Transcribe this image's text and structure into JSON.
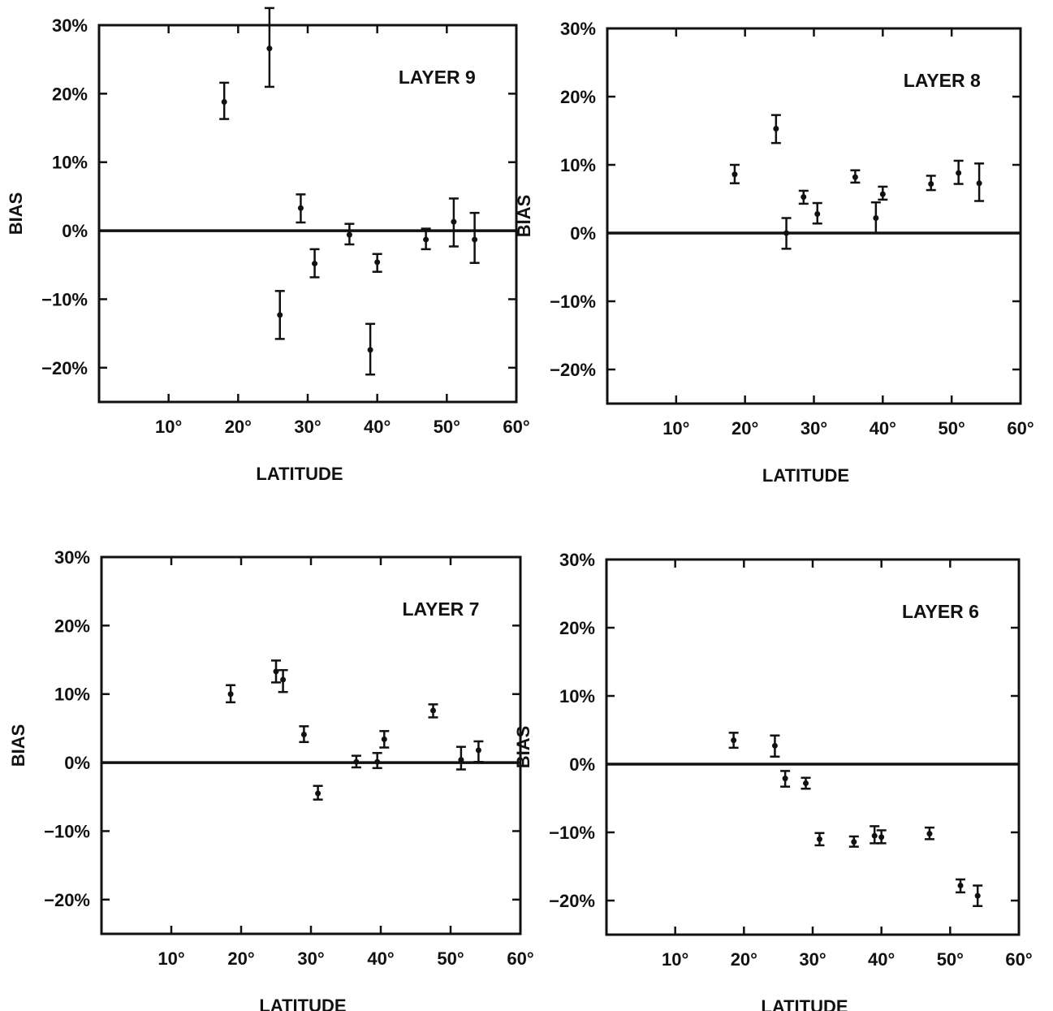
{
  "chart_data": [
    {
      "type": "scatter",
      "title": "LAYER 9",
      "xlabel": "LATITUDE",
      "ylabel": "BIAS",
      "xlim": [
        0,
        60
      ],
      "ylim": [
        -25,
        30
      ],
      "xticks": [
        10,
        20,
        30,
        40,
        50,
        60
      ],
      "xtick_labels": [
        "10°",
        "20°",
        "30°",
        "40°",
        "50°",
        "60°"
      ],
      "yticks": [
        -20,
        -10,
        0,
        10,
        20,
        30
      ],
      "ytick_labels": [
        "−20%",
        "−10%",
        "0%",
        "10%",
        "20%",
        "30%"
      ],
      "points": [
        {
          "x": 18.0,
          "y": 18.8,
          "lo": 16.3,
          "hi": 21.6
        },
        {
          "x": 24.5,
          "y": 26.6,
          "lo": 21.0,
          "hi": 32.5
        },
        {
          "x": 26.0,
          "y": -12.3,
          "lo": -15.8,
          "hi": -8.8
        },
        {
          "x": 29.0,
          "y": 3.3,
          "lo": 1.2,
          "hi": 5.3
        },
        {
          "x": 31.0,
          "y": -4.8,
          "lo": -6.8,
          "hi": -2.7
        },
        {
          "x": 36.0,
          "y": -0.6,
          "lo": -2.0,
          "hi": 1.0
        },
        {
          "x": 40.0,
          "y": -4.6,
          "lo": -6.0,
          "hi": -3.4
        },
        {
          "x": 39.0,
          "y": -17.4,
          "lo": -21.0,
          "hi": -13.6
        },
        {
          "x": 47.0,
          "y": -1.3,
          "lo": -2.7,
          "hi": 0.3
        },
        {
          "x": 51.0,
          "y": 1.3,
          "lo": -2.3,
          "hi": 4.7
        },
        {
          "x": 54.0,
          "y": -1.3,
          "lo": -4.7,
          "hi": 2.6
        }
      ]
    },
    {
      "type": "scatter",
      "title": "LAYER 8",
      "xlabel": "LATITUDE",
      "ylabel": "BIAS",
      "xlim": [
        0,
        60
      ],
      "ylim": [
        -25,
        30
      ],
      "xticks": [
        10,
        20,
        30,
        40,
        50,
        60
      ],
      "xtick_labels": [
        "10°",
        "20°",
        "30°",
        "40°",
        "50°",
        "60°"
      ],
      "yticks": [
        -20,
        -10,
        0,
        10,
        20,
        30
      ],
      "ytick_labels": [
        "−20%",
        "−10%",
        "0%",
        "10%",
        "20%",
        "30%"
      ],
      "points": [
        {
          "x": 18.5,
          "y": 8.6,
          "lo": 7.3,
          "hi": 10.0
        },
        {
          "x": 24.5,
          "y": 15.3,
          "lo": 13.2,
          "hi": 17.3
        },
        {
          "x": 26.0,
          "y": 0.0,
          "lo": -2.3,
          "hi": 2.2
        },
        {
          "x": 28.5,
          "y": 5.3,
          "lo": 4.3,
          "hi": 6.2
        },
        {
          "x": 30.5,
          "y": 2.8,
          "lo": 1.4,
          "hi": 4.4
        },
        {
          "x": 36.0,
          "y": 8.2,
          "lo": 7.4,
          "hi": 9.2
        },
        {
          "x": 39.0,
          "y": 2.2,
          "lo": 0.0,
          "hi": 4.5
        },
        {
          "x": 40.0,
          "y": 5.7,
          "lo": 4.9,
          "hi": 6.8
        },
        {
          "x": 47.0,
          "y": 7.2,
          "lo": 6.3,
          "hi": 8.4
        },
        {
          "x": 51.0,
          "y": 8.8,
          "lo": 7.2,
          "hi": 10.6
        },
        {
          "x": 54.0,
          "y": 7.3,
          "lo": 4.7,
          "hi": 10.2
        }
      ]
    },
    {
      "type": "scatter",
      "title": "LAYER 7",
      "xlabel": "LATITUDE",
      "ylabel": "BIAS",
      "xlim": [
        0,
        60
      ],
      "ylim": [
        -25,
        30
      ],
      "xticks": [
        10,
        20,
        30,
        40,
        50,
        60
      ],
      "xtick_labels": [
        "10°",
        "20°",
        "30°",
        "40°",
        "50°",
        "60°"
      ],
      "yticks": [
        -20,
        -10,
        0,
        10,
        20,
        30
      ],
      "ytick_labels": [
        "−20%",
        "−10%",
        "0%",
        "10%",
        "20%",
        "30%"
      ],
      "points": [
        {
          "x": 18.5,
          "y": 10.0,
          "lo": 8.8,
          "hi": 11.3
        },
        {
          "x": 25.0,
          "y": 13.3,
          "lo": 11.7,
          "hi": 14.9
        },
        {
          "x": 26.0,
          "y": 12.1,
          "lo": 10.3,
          "hi": 13.5
        },
        {
          "x": 29.0,
          "y": 4.1,
          "lo": 3.0,
          "hi": 5.3
        },
        {
          "x": 31.0,
          "y": -4.5,
          "lo": -5.4,
          "hi": -3.4
        },
        {
          "x": 36.5,
          "y": 0.1,
          "lo": -0.7,
          "hi": 1.0
        },
        {
          "x": 39.5,
          "y": 0.1,
          "lo": -0.8,
          "hi": 1.4
        },
        {
          "x": 40.5,
          "y": 3.4,
          "lo": 2.2,
          "hi": 4.6
        },
        {
          "x": 47.5,
          "y": 7.6,
          "lo": 6.6,
          "hi": 8.5
        },
        {
          "x": 51.5,
          "y": 0.4,
          "lo": -1.0,
          "hi": 2.3
        },
        {
          "x": 54.0,
          "y": 1.8,
          "lo": 0.1,
          "hi": 3.1
        }
      ]
    },
    {
      "type": "scatter",
      "title": "LAYER 6",
      "xlabel": "LATITUDE",
      "ylabel": "BIAS",
      "xlim": [
        0,
        60
      ],
      "ylim": [
        -25,
        30
      ],
      "xticks": [
        10,
        20,
        30,
        40,
        50,
        60
      ],
      "xtick_labels": [
        "10°",
        "20°",
        "30°",
        "40°",
        "50°",
        "60°"
      ],
      "yticks": [
        -20,
        -10,
        0,
        10,
        20,
        30
      ],
      "ytick_labels": [
        "−20%",
        "−10%",
        "0%",
        "10%",
        "20%",
        "30%"
      ],
      "points": [
        {
          "x": 18.5,
          "y": 3.5,
          "lo": 2.4,
          "hi": 4.6
        },
        {
          "x": 24.5,
          "y": 2.7,
          "lo": 1.1,
          "hi": 4.2
        },
        {
          "x": 26.0,
          "y": -2.1,
          "lo": -3.3,
          "hi": -1.0
        },
        {
          "x": 29.0,
          "y": -2.8,
          "lo": -3.6,
          "hi": -2.0
        },
        {
          "x": 31.0,
          "y": -11.0,
          "lo": -11.9,
          "hi": -10.1
        },
        {
          "x": 36.0,
          "y": -11.4,
          "lo": -12.1,
          "hi": -10.6
        },
        {
          "x": 39.0,
          "y": -10.5,
          "lo": -11.6,
          "hi": -9.1
        },
        {
          "x": 40.0,
          "y": -10.7,
          "lo": -11.6,
          "hi": -9.7
        },
        {
          "x": 47.0,
          "y": -10.2,
          "lo": -11.0,
          "hi": -9.3
        },
        {
          "x": 51.5,
          "y": -17.8,
          "lo": -18.8,
          "hi": -16.9
        },
        {
          "x": 54.0,
          "y": -19.3,
          "lo": -20.8,
          "hi": -17.8
        }
      ]
    }
  ]
}
